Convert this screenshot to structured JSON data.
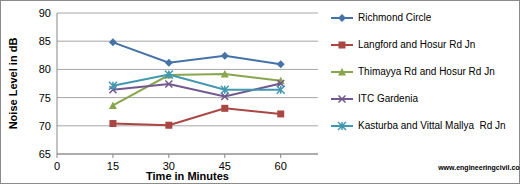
{
  "chart_data": {
    "type": "line",
    "x_label": "Time in Minutes",
    "y_label": "Noise Level in dB",
    "annotations": [
      "www.engineeringcivil.com"
    ],
    "x": [
      15,
      30,
      45,
      60
    ],
    "xlim": [
      0,
      70
    ],
    "xticks": [
      0,
      15,
      30,
      45,
      60
    ],
    "ylim": [
      65,
      90
    ],
    "yticks": [
      65,
      70,
      75,
      80,
      85,
      90
    ],
    "grid": true,
    "legend": "right",
    "series": [
      {
        "name": "Richmond Circle",
        "color": "#4572a7",
        "marker": "diamond",
        "values": [
          84.8,
          81.2,
          82.4,
          80.9
        ]
      },
      {
        "name": "Langford and Hosur Rd Jn",
        "color": "#aa4643",
        "marker": "square",
        "values": [
          70.4,
          70.1,
          73.1,
          72.1
        ]
      },
      {
        "name": "Thimayya Rd and Hosur Rd Jn",
        "color": "#89a54e",
        "marker": "triangle",
        "values": [
          73.6,
          79.0,
          79.2,
          78.0
        ]
      },
      {
        "name": "ITC Gardenia",
        "color": "#71588f",
        "marker": "x",
        "values": [
          76.4,
          77.4,
          75.2,
          77.5
        ]
      },
      {
        "name": "Kasturba and Vittal Mallya  Rd Jn",
        "color": "#4198af",
        "marker": "star",
        "values": [
          77.1,
          79.1,
          76.4,
          76.4
        ]
      }
    ]
  }
}
